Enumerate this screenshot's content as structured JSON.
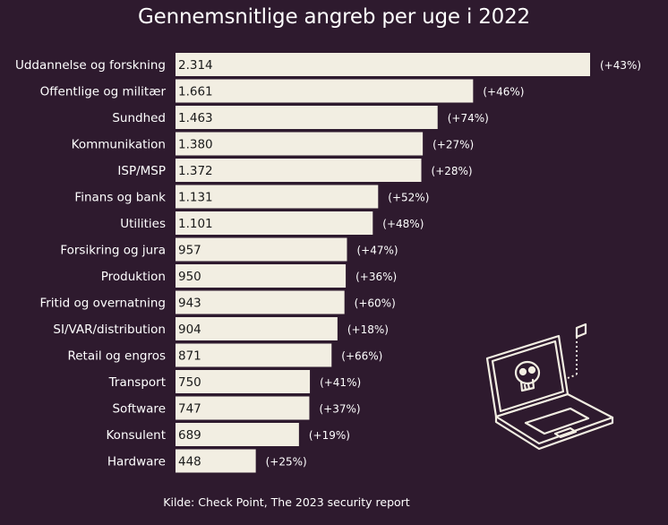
{
  "chart_data": {
    "type": "bar",
    "orientation": "horizontal",
    "title": "Gennemsnitlige angreb per uge i 2022",
    "categories": [
      "Uddannelse og forskning",
      "Offentlige og militær",
      "Sundhed",
      "Kommunikation",
      "ISP/MSP",
      "Finans og bank",
      "Utilities",
      "Forsikring og jura",
      "Produktion",
      "Fritid og overnatning",
      "SI/VAR/distribution",
      "Retail og engros",
      "Transport",
      "Software",
      "Konsulent",
      "Hardware"
    ],
    "values": [
      2314,
      1661,
      1463,
      1380,
      1372,
      1131,
      1101,
      957,
      950,
      943,
      904,
      871,
      750,
      747,
      689,
      448
    ],
    "value_labels": [
      "2.314",
      "1.661",
      "1.463",
      "1.380",
      "1.372",
      "1.131",
      "1.101",
      "957",
      "950",
      "943",
      "904",
      "871",
      "750",
      "747",
      "689",
      "448"
    ],
    "change_labels": [
      "(+43%)",
      "(+46%)",
      "(+74%)",
      "(+27%)",
      "(+28%)",
      "(+52%)",
      "(+48%)",
      "(+47%)",
      "(+36%)",
      "(+60%)",
      "(+18%)",
      "(+66%)",
      "(+41%)",
      "(+37%)",
      "(+19%)",
      "(+25%)"
    ],
    "xlim": [
      0,
      2314
    ],
    "grid": false,
    "legend": "none",
    "source": "Kilde: Check Point, The 2023 security report"
  },
  "colors": {
    "background": "#2e1a2e",
    "bar": "#f2eee2",
    "text": "#ffffff",
    "value_text": "#1a1a1a",
    "icon_stroke": "#f2eee2"
  },
  "icons": {
    "illustration": "laptop-skull-icon"
  }
}
